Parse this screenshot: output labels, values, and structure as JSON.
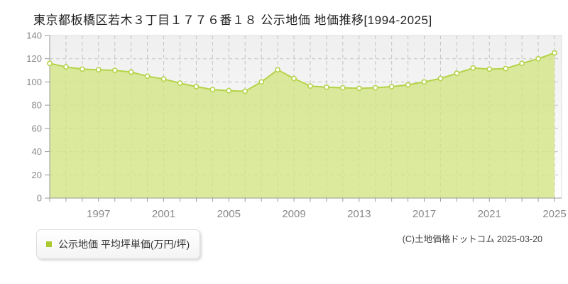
{
  "title": "東京都板橋区若木３丁目１７７６番１８ 公示地価 地価推移[1994-2025]",
  "legend": {
    "label": "公示地価 平均坪単価(万円/坪)",
    "marker_color": "#a9c92c"
  },
  "copyright": "(C)土地価格ドットコム 2025-03-20",
  "chart_data": {
    "type": "area",
    "title": "東京都板橋区若木３丁目１７７６番１８ 公示地価 地価推移[1994-2025]",
    "series": [
      {
        "name": "公示地価 平均坪単価(万円/坪)",
        "x": [
          1994,
          1995,
          1996,
          1997,
          1998,
          1999,
          2000,
          2001,
          2002,
          2003,
          2004,
          2005,
          2006,
          2007,
          2008,
          2009,
          2010,
          2011,
          2012,
          2013,
          2014,
          2015,
          2016,
          2017,
          2018,
          2019,
          2020,
          2021,
          2022,
          2023,
          2024,
          2025
        ],
        "values": [
          116,
          113,
          111,
          110.5,
          110,
          108.5,
          105,
          102.5,
          99,
          96,
          93.5,
          92.5,
          92,
          100,
          110.5,
          103,
          96.5,
          95.5,
          95,
          94.5,
          95,
          96,
          97.5,
          100,
          103,
          107.5,
          112,
          111,
          111.5,
          116,
          120,
          125
        ]
      }
    ],
    "xlabel": "",
    "ylabel": "",
    "ylim": [
      0,
      140
    ],
    "ytick_step": 20,
    "xticks_labeled": [
      1997,
      2001,
      2005,
      2009,
      2013,
      2017,
      2021,
      2025
    ],
    "grid": true,
    "legend_position": "bottom-left",
    "colors": {
      "area_fill": "#d3e586",
      "area_fill_opacity": "0.8",
      "line": "#b5d348",
      "marker_fill": "#ffffff",
      "marker_stroke": "#b5d348",
      "grid": "#c3c3c3",
      "axis": "#999999",
      "plot_border": "#dddddd",
      "plot_bg_top": "#efefef",
      "plot_bg_bottom": "#ffffff"
    }
  }
}
